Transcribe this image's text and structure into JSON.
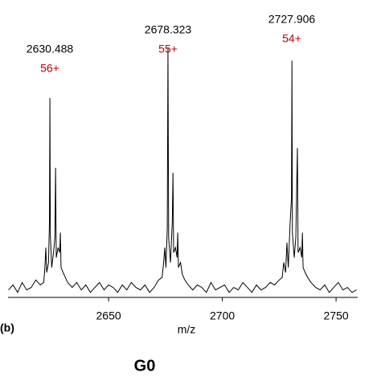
{
  "chart_data": {
    "type": "line",
    "panel_label": "(b)",
    "x_label": "m/z",
    "caption": "G0",
    "xlim": [
      2605.8,
      2759.5
    ],
    "xticks": [
      2650,
      2700,
      2750
    ],
    "ylim": [
      0,
      100
    ],
    "annotations": [
      {
        "mass": "2630.488",
        "charge": "56+"
      },
      {
        "mass": "2678.323",
        "charge": "55+"
      },
      {
        "mass": "2727.906",
        "charge": "54+"
      }
    ],
    "series": [
      {
        "color": "#000000",
        "x": [
          2606,
          2608,
          2610,
          2612,
          2614,
          2616,
          2618,
          2620,
          2621.5,
          2622.0,
          2622.4,
          2622.8,
          2623.6,
          2624.0,
          2624.2,
          2624.4,
          2625.0,
          2625.8,
          2626.4,
          2626.7,
          2627.0,
          2627.8,
          2628.5,
          2628.8,
          2629.1,
          2630,
          2631,
          2632,
          2634,
          2636,
          2638,
          2640,
          2642,
          2644,
          2646,
          2648,
          2650,
          2652,
          2654,
          2656,
          2658,
          2660,
          2662,
          2664,
          2666,
          2668,
          2670,
          2672,
          2673.5,
          2674.2,
          2674.7,
          2675.2,
          2675.8,
          2676.1,
          2676.4,
          2677.2,
          2678.0,
          2678.3,
          2678.6,
          2679.4,
          2680.1,
          2680.4,
          2680.7,
          2681.6,
          2682.5,
          2683.5,
          2685,
          2687,
          2689,
          2691,
          2693,
          2695,
          2697,
          2699,
          2701,
          2703,
          2705,
          2707,
          2709,
          2711,
          2713,
          2715,
          2717,
          2719,
          2721,
          2723,
          2725,
          2726.3,
          2727.0,
          2727.8,
          2728.4,
          2729.0,
          2729.8,
          2730.4,
          2730.6,
          2730.8,
          2731.6,
          2732.3,
          2733.0,
          2733.3,
          2734.2,
          2734.9,
          2735.2,
          2735.5,
          2736.4,
          2737.5,
          2739,
          2741,
          2743,
          2745,
          2747,
          2749,
          2751,
          2753,
          2755,
          2757,
          2759
        ],
        "values": [
          3,
          5,
          2,
          6,
          3,
          4,
          7,
          5,
          6,
          12,
          20,
          10,
          14,
          30,
          80,
          25,
          12,
          18,
          24,
          52,
          16,
          20,
          18,
          26,
          12,
          10,
          8,
          6,
          4,
          6,
          3,
          5,
          2,
          4,
          6,
          3,
          5,
          4,
          2,
          5,
          3,
          6,
          4,
          3,
          5,
          2,
          4,
          7,
          8,
          14,
          20,
          12,
          28,
          100,
          24,
          14,
          30,
          50,
          18,
          20,
          16,
          26,
          12,
          14,
          9,
          7,
          5,
          3,
          5,
          4,
          2,
          6,
          3,
          4,
          5,
          2,
          4,
          3,
          6,
          4,
          2,
          5,
          3,
          4,
          6,
          5,
          7,
          8,
          14,
          10,
          22,
          12,
          30,
          40,
          95,
          26,
          16,
          24,
          60,
          18,
          20,
          16,
          26,
          12,
          10,
          8,
          6,
          4,
          3,
          5,
          2,
          4,
          6,
          3,
          4,
          2,
          3
        ]
      }
    ]
  }
}
